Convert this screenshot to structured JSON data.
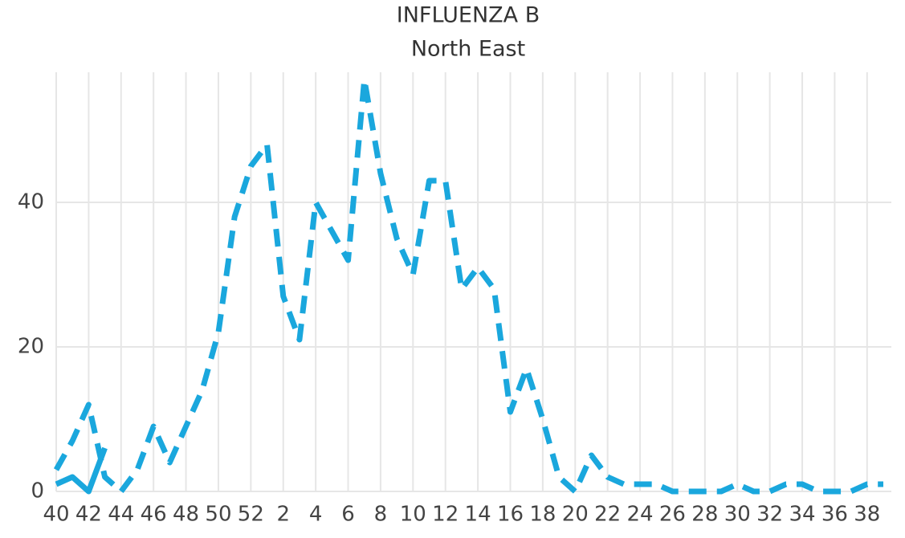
{
  "chart_data": {
    "type": "line",
    "title": "INFLUENZA B",
    "subtitle": "North East",
    "categories": [
      "40",
      null,
      "42",
      null,
      "44",
      null,
      "46",
      null,
      "48",
      null,
      "50",
      null,
      "52",
      null,
      "2",
      null,
      "4",
      null,
      "6",
      null,
      "8",
      null,
      "10",
      null,
      "12",
      null,
      "14",
      null,
      "16",
      null,
      "18",
      null,
      "20",
      null,
      "22",
      null,
      "24",
      null,
      "26",
      null,
      "28",
      null,
      "30",
      null,
      "32",
      null,
      "34",
      null,
      "36",
      null,
      "38",
      null
    ],
    "series": [
      {
        "color": "#1aa7dd",
        "dash": true,
        "values": [
          3,
          7,
          12,
          2,
          0,
          3,
          9,
          4,
          9,
          14,
          22,
          38,
          45,
          48,
          27,
          21,
          40,
          36,
          32,
          57,
          44,
          35,
          30,
          43,
          43,
          28,
          31,
          28,
          11,
          17,
          10,
          2,
          0,
          5,
          2,
          1,
          1,
          1,
          0,
          0,
          0,
          0,
          1,
          0,
          0,
          1,
          1,
          0,
          0,
          0,
          1,
          1
        ]
      },
      {
        "color": "#1aa7dd",
        "dash": false,
        "values": [
          1,
          2,
          0,
          6,
          null,
          null,
          null,
          null,
          null,
          null,
          null,
          null,
          null,
          null,
          null,
          null,
          null,
          null,
          null,
          null,
          null,
          null,
          null,
          null,
          null,
          null,
          null,
          null,
          null,
          null,
          null,
          null,
          null,
          null,
          null,
          null,
          null,
          null,
          null,
          null,
          null,
          null,
          null,
          null,
          null,
          null,
          null,
          null,
          null,
          null,
          null,
          null
        ]
      }
    ],
    "ylim": [
      0,
      58
    ],
    "yticks": [
      0,
      20,
      40
    ],
    "grid": true
  }
}
